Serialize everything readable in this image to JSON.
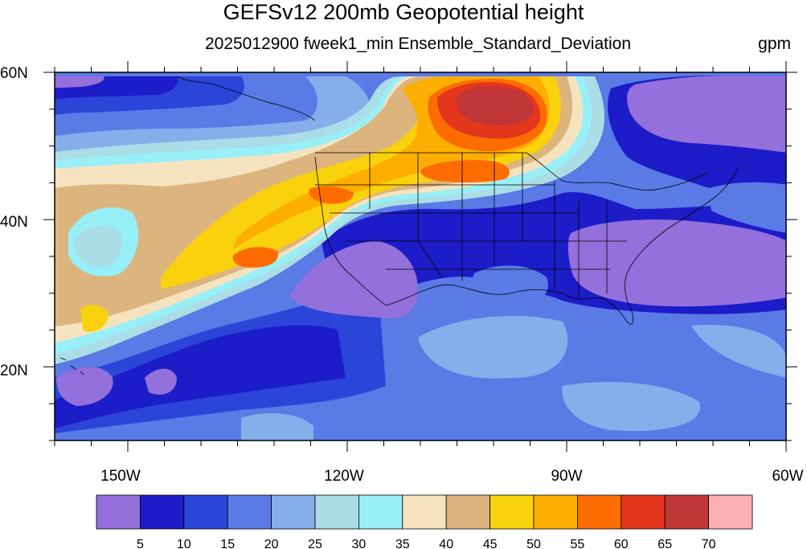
{
  "header": {
    "title": "GEFSv12 200mb Geopotential height",
    "subtitle": "2025012900 fweek1_min Ensemble_Standard_Deviation",
    "units": "gpm"
  },
  "axes": {
    "lat_labels": [
      "60N",
      "40N",
      "20N"
    ],
    "lon_labels": [
      "150W",
      "120W",
      "90W",
      "60W"
    ],
    "lat_range": [
      10,
      60
    ],
    "lon_range": [
      -160,
      -60
    ]
  },
  "colorbar": {
    "levels": [
      "5",
      "10",
      "15",
      "20",
      "25",
      "30",
      "35",
      "40",
      "45",
      "50",
      "55",
      "60",
      "65",
      "70"
    ],
    "colors": [
      "#9370db",
      "#1c1cc8",
      "#2a45d8",
      "#5a7ae6",
      "#86aeea",
      "#abdde6",
      "#98eff8",
      "#f5e3c0",
      "#dcb47e",
      "#f9d10c",
      "#fdae00",
      "#fd6c00",
      "#e3361c",
      "#c03636",
      "#fdb0b4"
    ]
  },
  "map": {
    "projection": "cylindrical-equidistant",
    "field": "200mb geopotential height ensemble standard deviation",
    "features": [
      "coastlines",
      "us-state-borders",
      "country-borders"
    ]
  }
}
